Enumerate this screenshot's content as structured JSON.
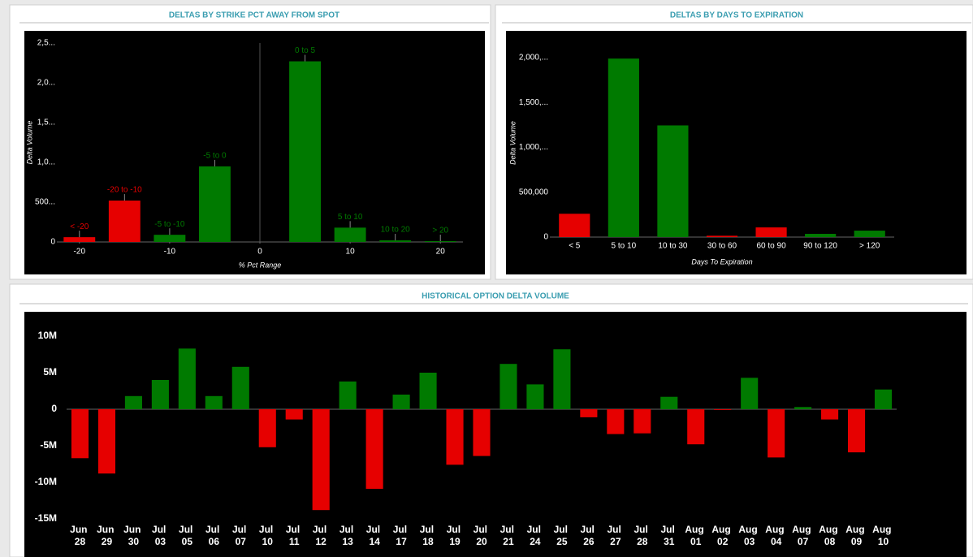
{
  "chart_data": [
    {
      "type": "bar",
      "title": "DELTAS BY STRIKE PCT AWAY FROM SPOT",
      "x": [
        -20,
        -15,
        -10,
        -5,
        5,
        10,
        15,
        20
      ],
      "values": [
        60000,
        520000,
        90000,
        950000,
        2270000,
        180000,
        20000,
        10000
      ],
      "bar_labels": [
        "< -20",
        "-20 to -10",
        "-5 to -10",
        "-5 to 0",
        "0 to 5",
        "5 to 10",
        "10 to 20",
        "> 20"
      ],
      "colors": [
        "#e60000",
        "#e60000",
        "#007a00",
        "#007a00",
        "#007a00",
        "#007a00",
        "#007a00",
        "#007a00"
      ],
      "xlim": [
        -22.5,
        22.5
      ],
      "xticks": [
        -20,
        -10,
        0,
        10,
        20
      ],
      "ylim": [
        0,
        2500000
      ],
      "yticks": [
        0,
        {
          "value": 500000,
          "label": "500..."
        },
        {
          "value": 1000000,
          "label": "1,0..."
        },
        {
          "value": 1500000,
          "label": "1,5..."
        },
        {
          "value": 2000000,
          "label": "2,0..."
        },
        {
          "value": 2500000,
          "label": "2,5..."
        }
      ],
      "xlabel": "% Pct Range",
      "ylabel": "Delta Volume"
    },
    {
      "type": "bar",
      "title": "DELTAS BY DAYS TO EXPIRATION",
      "categories": [
        "< 5",
        "5 to 10",
        "10 to 30",
        "30 to 60",
        "60 to 90",
        "90 to 120",
        "> 120"
      ],
      "values": [
        260000,
        1990000,
        1245000,
        15000,
        108000,
        36000,
        72000
      ],
      "colors": [
        "#e60000",
        "#007a00",
        "#007a00",
        "#e60000",
        "#e60000",
        "#007a00",
        "#007a00"
      ],
      "ylim": [
        0,
        2100000
      ],
      "yticks": [
        0,
        {
          "value": 500000,
          "label": "500,000"
        },
        {
          "value": 1000000,
          "label": "1,000,..."
        },
        {
          "value": 1500000,
          "label": "1,500,..."
        },
        {
          "value": 2000000,
          "label": "2,000,..."
        }
      ],
      "xlabel": "Days To Expiration",
      "ylabel": "Delta Volume"
    },
    {
      "type": "bar",
      "title": "HISTORICAL OPTION DELTA VOLUME",
      "categories": [
        "Jun 28",
        "Jun 29",
        "Jun 30",
        "Jul 03",
        "Jul 05",
        "Jul 06",
        "Jul 07",
        "Jul 10",
        "Jul 11",
        "Jul 12",
        "Jul 13",
        "Jul 14",
        "Jul 17",
        "Jul 18",
        "Jul 19",
        "Jul 20",
        "Jul 21",
        "Jul 24",
        "Jul 25",
        "Jul 26",
        "Jul 27",
        "Jul 28",
        "Jul 31",
        "Aug 01",
        "Aug 02",
        "Aug 03",
        "Aug 04",
        "Aug 07",
        "Aug 08",
        "Aug 09",
        "Aug 10"
      ],
      "values": [
        -6700000,
        -8800000,
        1800000,
        4000000,
        8300000,
        1800000,
        5800000,
        -5200000,
        -1400000,
        -13800000,
        3800000,
        -10900000,
        2000000,
        5000000,
        -7600000,
        -6400000,
        6200000,
        3400000,
        8200000,
        -1100000,
        -3400000,
        -3300000,
        1700000,
        -4800000,
        -100000,
        4300000,
        -6600000,
        300000,
        -1400000,
        -5900000,
        2700000
      ],
      "up_color": "#007a00",
      "down_color": "#e60000",
      "ylim": [
        -15000000,
        12000000
      ],
      "yticks": [
        {
          "value": -15000000,
          "label": "-15M"
        },
        {
          "value": -10000000,
          "label": "-10M"
        },
        {
          "value": -5000000,
          "label": "-5M"
        },
        0,
        {
          "value": 5000000,
          "label": "5M"
        },
        {
          "value": 10000000,
          "label": "10M"
        }
      ]
    }
  ]
}
